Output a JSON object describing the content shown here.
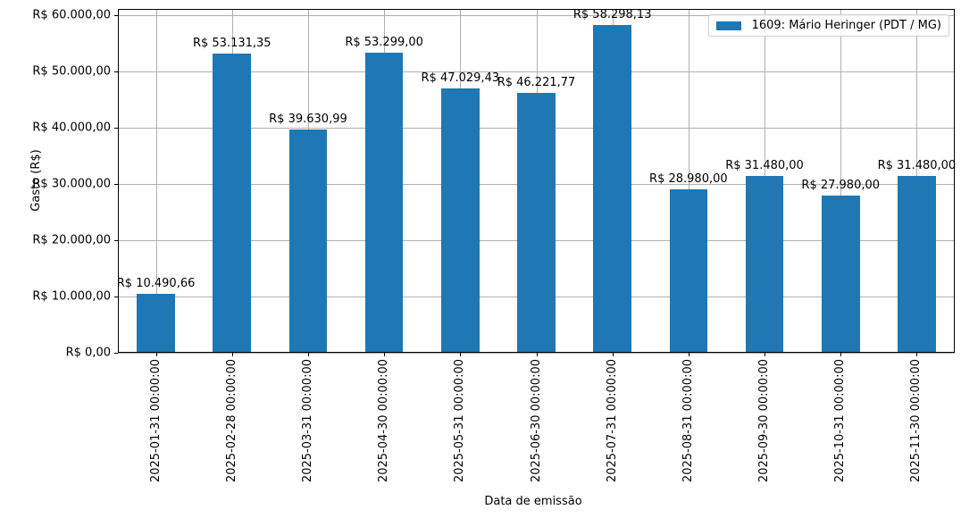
{
  "chart_data": {
    "type": "bar",
    "title": "",
    "xlabel": "Data de emissão",
    "ylabel": "Gasto (R$)",
    "ylim": [
      0,
      61111
    ],
    "grid": true,
    "legend_position": "upper right",
    "series": [
      {
        "name": "1609: Mário Heringer (PDT / MG)",
        "color": "#1f77b4",
        "values": [
          10490.66,
          53131.35,
          39630.99,
          53299.0,
          47029.43,
          46221.77,
          58298.13,
          28980.0,
          31480.0,
          27980.0,
          31480.0
        ]
      }
    ],
    "categories": [
      "2025-01-31 00:00:00",
      "2025-02-28 00:00:00",
      "2025-03-31 00:00:00",
      "2025-04-30 00:00:00",
      "2025-05-31 00:00:00",
      "2025-06-30 00:00:00",
      "2025-07-31 00:00:00",
      "2025-08-31 00:00:00",
      "2025-09-30 00:00:00",
      "2025-10-31 00:00:00",
      "2025-11-30 00:00:00"
    ],
    "bar_labels": [
      "R$ 10.490,66",
      "R$ 53.131,35",
      "R$ 39.630,99",
      "R$ 53.299,00",
      "R$ 47.029,43",
      "R$ 46.221,77",
      "R$ 58.298,13",
      "R$ 28.980,00",
      "R$ 31.480,00",
      "R$ 27.980,00",
      "R$ 31.480,00"
    ],
    "yticks": [
      0,
      10000,
      20000,
      30000,
      40000,
      50000,
      60000
    ],
    "ytick_labels": [
      "R$ 0,00",
      "R$ 10.000,00",
      "R$ 20.000,00",
      "R$ 30.000,00",
      "R$ 40.000,00",
      "R$ 50.000,00",
      "R$ 60.000,00"
    ]
  }
}
